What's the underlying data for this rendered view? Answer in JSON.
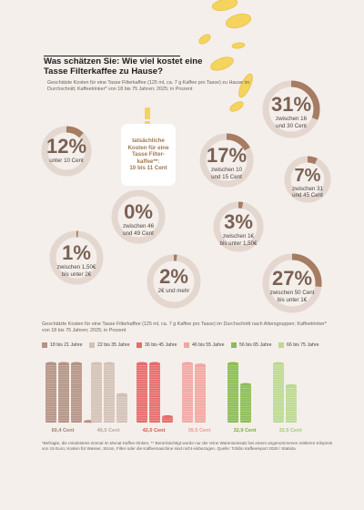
{
  "header": {
    "title": "Was schätzen Sie: Wie viel kostet eine Tasse Filterkaffee zu Hause?",
    "subtitle": "Geschätzte Kosten für eine Tasse Filterkaffee (125 ml, ca. 7 g Kaffee pro Tasse) zu Hause im Durchschnitt; Kaffeetrinker* von 18 bis 75 Jahren; 2025; in Prozent"
  },
  "callout": {
    "icon": "exclamation-icon",
    "line1": "tatsächliche",
    "line2": "Kosten für eine",
    "line3": "Tasse Filter-",
    "line4": "kaffee**:",
    "line5": "10 bis 11 Cent"
  },
  "colors": {
    "ring_fill": "#a67c62",
    "ring_track": "#e3d7cf",
    "coin": "#f4d35e"
  },
  "chart_data": [
    {
      "type": "pie",
      "categories": [
        "unter 10 Cent",
        "zwischen 10 und 15 Cent",
        "zwischen 16 und 30 Cent",
        "zwischen 31 und 45 Cent",
        "zwischen 46 und 49 Cent",
        "zwischen 1€ bis unter 1,50€",
        "zwischen 1,50€ bis unter 2€",
        "2€ und mehr",
        "zwischen 50 Cent bis unter 1€"
      ],
      "values": [
        12,
        17,
        31,
        7,
        0,
        3,
        1,
        2,
        27
      ],
      "value_labels": [
        "12%",
        "17%",
        "31%",
        "7%",
        "0%",
        "3%",
        "1%",
        "2%",
        "27%"
      ],
      "label_lines": [
        [
          "unter 10 Cent"
        ],
        [
          "zwischen 10",
          "und 15 Cent"
        ],
        [
          "zwischen 16",
          "und 30 Cent"
        ],
        [
          "zwischen 31",
          "und 45 Cent"
        ],
        [
          "zwischen 46",
          "und 49 Cent"
        ],
        [
          "zwischen 1€",
          "bis unter 1,50€"
        ],
        [
          "zwischen 1,50€",
          "bis unter 2€"
        ],
        [
          "2€ und mehr"
        ],
        [
          "zwischen 50 Cent",
          "bis unter 1€"
        ]
      ]
    },
    {
      "type": "bar",
      "title": "Geschätzte Kosten für eine Tasse Filterkaffee (125 ml, ca. 7 g Kaffee pro Tasse) im Durchschnitt nach Altersgruppen; Kaffeetrinker* von 18 bis 75 Jahren; 2025; in Prozent",
      "categories": [
        "18 bis 21 Jahre",
        "22 bis 35 Jahre",
        "36 bis 45 Jahre",
        "46 bis 55 Jahre",
        "56 bis 65 Jahre",
        "66 bis 75 Jahre"
      ],
      "values": [
        60.4,
        49.5,
        42.0,
        39.5,
        32.9,
        32.5
      ],
      "value_labels": [
        "60,4 Cent",
        "49,5 Cent",
        "42,0 Cent",
        "39,5 Cent",
        "32,9 Cent",
        "32,5 Cent"
      ],
      "colors": [
        "#b49384",
        "#d3c1b6",
        "#e66b6b",
        "#f1a7a1",
        "#8bbd53",
        "#bcd991"
      ],
      "label_colors": [
        "#a07f70",
        "#b9a59a",
        "#d9534f",
        "#ec9a93",
        "#7aac44",
        "#a3c877"
      ],
      "stack_unit_cent": 20,
      "ylim": [
        0,
        61
      ]
    }
  ],
  "footnote": "*Befragte, die mindestens einmal im Monat Kaffee trinken. ** Berücksichtigt wurde nur der reine Warenseinsatz bei einem angenommenen mittleren Kilopreis von 15 Euro; Kosten für Wasser, Strom, Filter oder die Kaffeemaschine sind nicht einbezogen. Quelle: Tchibo Kaffeereport 2025 / Statista"
}
